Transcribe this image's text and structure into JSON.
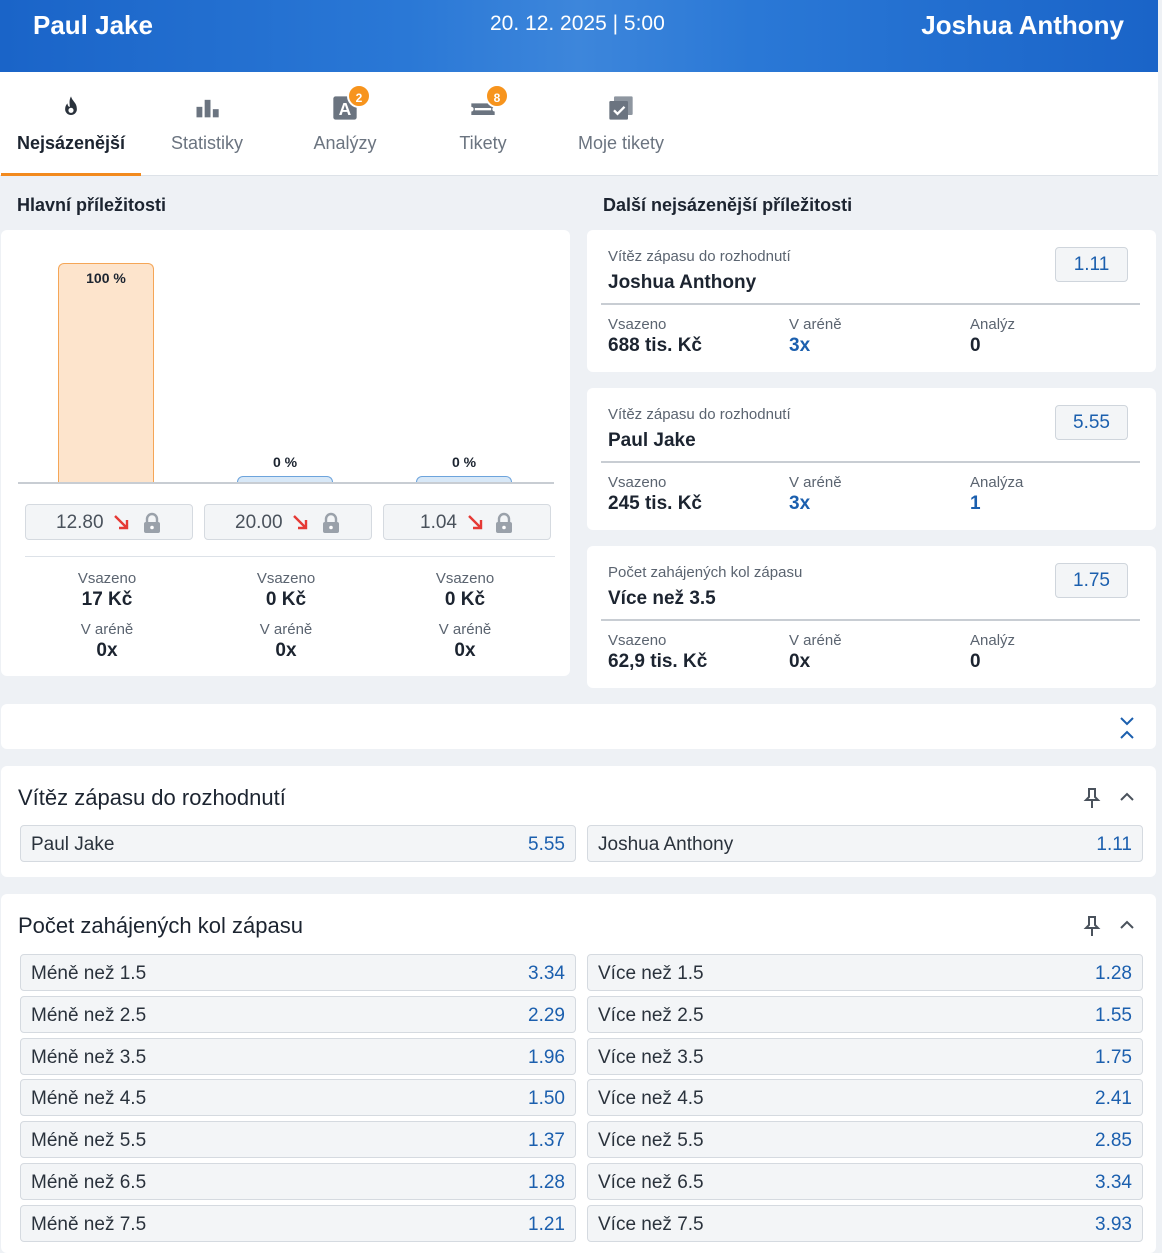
{
  "header": {
    "home": "Paul Jake",
    "date": "20. 12. 2025 | 5:00",
    "away": "Joshua Anthony"
  },
  "tabs": [
    {
      "label": "Nejsázenější",
      "icon": "flame-icon",
      "active": true
    },
    {
      "label": "Statistiky",
      "icon": "bar-chart-icon"
    },
    {
      "label": "Analýzy",
      "icon": "analysis-icon",
      "badge": "2"
    },
    {
      "label": "Tikety",
      "icon": "ticket-icon",
      "badge": "8"
    },
    {
      "label": "Moje tikety",
      "icon": "my-tickets-icon"
    }
  ],
  "main": {
    "title": "Hlavní příležitosti",
    "chart_data": {
      "type": "bar",
      "categories": [
        "12.80",
        "20.00",
        "1.04"
      ],
      "values": [
        100,
        0,
        0
      ],
      "unit": "%",
      "ylim": [
        0,
        100
      ]
    },
    "pct_labels": [
      "100 %",
      "0 %",
      "0 %"
    ],
    "odds": [
      "12.80",
      "20.00",
      "1.04"
    ],
    "stats": [
      {
        "vsazeno_label": "Vsazeno",
        "vsazeno": "17 Kč",
        "arena_label": "V aréně",
        "arena": "0x"
      },
      {
        "vsazeno_label": "Vsazeno",
        "vsazeno": "0 Kč",
        "arena_label": "V aréně",
        "arena": "0x"
      },
      {
        "vsazeno_label": "Vsazeno",
        "vsazeno": "0 Kč",
        "arena_label": "V aréně",
        "arena": "0x"
      }
    ]
  },
  "other": {
    "title": "Další nejsázenější příležitosti",
    "cards": [
      {
        "market": "Vítěz zápasu do rozhodnutí",
        "selection": "Joshua Anthony",
        "odd": "1.11",
        "k1": "Vsazeno",
        "v1": "688 tis. Kč",
        "k2": "V aréně",
        "v2": "3x",
        "k3": "Analýz",
        "v3": "0"
      },
      {
        "market": "Vítěz zápasu do rozhodnutí",
        "selection": "Paul Jake",
        "odd": "5.55",
        "k1": "Vsazeno",
        "v1": "245 tis. Kč",
        "k2": "V aréně",
        "v2": "3x",
        "k3": "Analýza",
        "v3": "1"
      },
      {
        "market": "Počet zahájených kol zápasu",
        "selection": "Více než 3.5",
        "odd": "1.75",
        "k1": "Vsazeno",
        "v1": "62,9 tis. Kč",
        "k2": "V aréně",
        "v2": "0x",
        "k3": "Analýz",
        "v3": "0"
      }
    ]
  },
  "winner_market": {
    "title": "Vítěz zápasu do rozhodnutí",
    "options": [
      {
        "label": "Paul Jake",
        "odd": "5.55"
      },
      {
        "label": "Joshua Anthony",
        "odd": "1.11"
      }
    ]
  },
  "rounds_market": {
    "title": "Počet zahájených kol zápasu",
    "rows": [
      {
        "under": "Méně než 1.5",
        "under_odd": "3.34",
        "over": "Více než 1.5",
        "over_odd": "1.28"
      },
      {
        "under": "Méně než 2.5",
        "under_odd": "2.29",
        "over": "Více než 2.5",
        "over_odd": "1.55"
      },
      {
        "under": "Méně než 3.5",
        "under_odd": "1.96",
        "over": "Více než 3.5",
        "over_odd": "1.75"
      },
      {
        "under": "Méně než 4.5",
        "under_odd": "1.50",
        "over": "Více než 4.5",
        "over_odd": "2.41"
      },
      {
        "under": "Méně než 5.5",
        "under_odd": "1.37",
        "over": "Více než 5.5",
        "over_odd": "2.85"
      },
      {
        "under": "Méně než 6.5",
        "under_odd": "1.28",
        "over": "Více než 6.5",
        "over_odd": "3.34"
      },
      {
        "under": "Méně než 7.5",
        "under_odd": "1.21",
        "over": "Více než 7.5",
        "over_odd": "3.93"
      }
    ]
  },
  "colors": {
    "brand": "#1a64c8",
    "accent": "#f28a1e",
    "odd_text": "#1b5fae",
    "arrow_down": "#e53935"
  }
}
